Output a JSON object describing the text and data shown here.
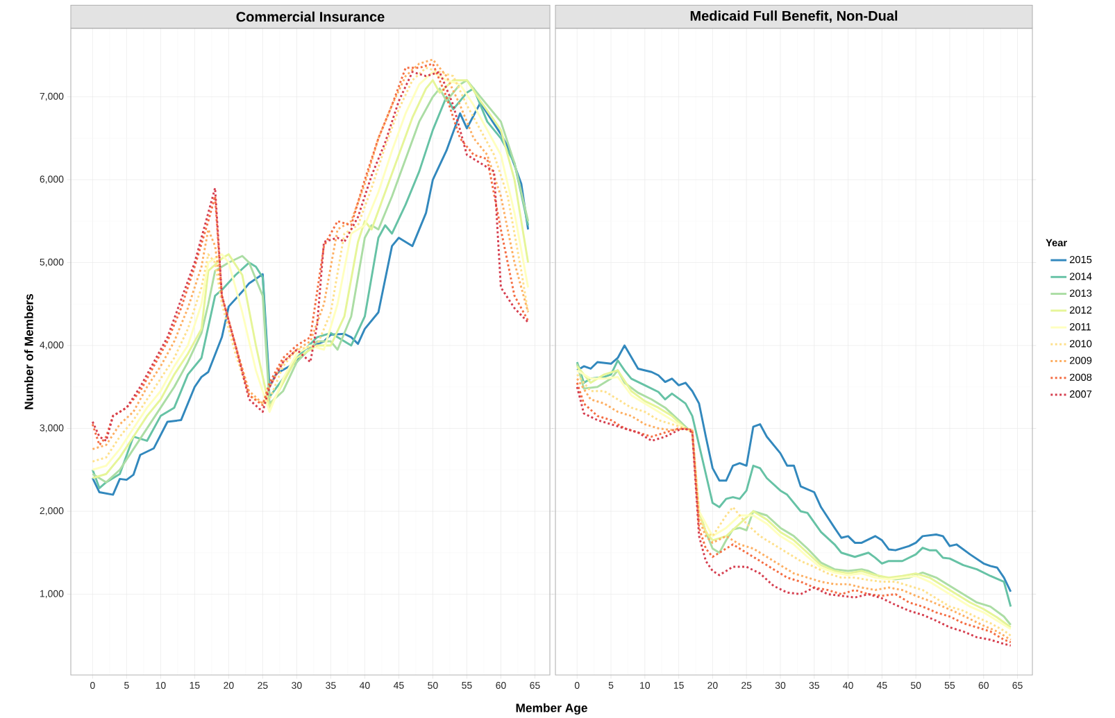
{
  "chart_data": [
    {
      "type": "line",
      "title": "Commercial Insurance",
      "xlabel": "Member Age",
      "ylabel": "Number of Members",
      "xlim": [
        -3.2,
        67.2
      ],
      "ylim": [
        25,
        7825
      ],
      "xticks": [
        0,
        5,
        10,
        15,
        20,
        25,
        30,
        35,
        40,
        45,
        50,
        55,
        60,
        65
      ],
      "yticks": [
        {
          "value": 1000,
          "label": "1,000"
        },
        {
          "value": 2000,
          "label": "2,000"
        },
        {
          "value": 3000,
          "label": "3,000"
        },
        {
          "value": 4000,
          "label": "4,000"
        },
        {
          "value": 5000,
          "label": "5,000"
        },
        {
          "value": 6000,
          "label": "6,000"
        },
        {
          "value": 7000,
          "label": "7,000"
        }
      ],
      "grid": true,
      "legend": false,
      "series": [
        {
          "color": "#3288bd",
          "line_style": "solid",
          "x": [
            0,
            1,
            3,
            4,
            5,
            6,
            7,
            9,
            11,
            13,
            15,
            16,
            17,
            19,
            20,
            22,
            23,
            25,
            26,
            27,
            30,
            31,
            34,
            35,
            37,
            38,
            39,
            40,
            42,
            44,
            45,
            47,
            49,
            50,
            52,
            54,
            55,
            57,
            58,
            60,
            61,
            63,
            64
          ],
          "values": [
            2400,
            2230,
            2200,
            2390,
            2380,
            2440,
            2680,
            2760,
            3080,
            3100,
            3500,
            3620,
            3680,
            4100,
            4470,
            4650,
            4750,
            4860,
            3500,
            3660,
            3800,
            3950,
            4050,
            4130,
            4140,
            4100,
            4020,
            4200,
            4400,
            5200,
            5300,
            5200,
            5600,
            6000,
            6350,
            6800,
            6620,
            6930,
            6800,
            6550,
            6400,
            5950,
            5400
          ]
        },
        {
          "color": "#66c2a5",
          "line_style": "solid",
          "x": [
            0,
            1,
            2,
            4,
            6,
            8,
            10,
            12,
            14,
            16,
            18,
            19,
            21,
            23,
            24,
            25,
            26,
            28,
            30,
            33,
            35,
            36,
            38,
            40,
            42,
            43,
            44,
            46,
            48,
            50,
            52,
            53,
            55,
            56,
            58,
            60,
            62,
            64
          ],
          "values": [
            2500,
            2280,
            2350,
            2450,
            2900,
            2850,
            3150,
            3250,
            3650,
            3850,
            4600,
            4670,
            4850,
            5000,
            4950,
            4820,
            3380,
            3600,
            3850,
            4100,
            4150,
            4100,
            4000,
            4350,
            5300,
            5450,
            5350,
            5700,
            6100,
            6600,
            7000,
            6850,
            7050,
            7100,
            6700,
            6500,
            6200,
            5450
          ]
        },
        {
          "color": "#abdda4",
          "line_style": "solid",
          "x": [
            0,
            2,
            4,
            6,
            8,
            10,
            12,
            14,
            16,
            17,
            18,
            20,
            22,
            23,
            25,
            26,
            28,
            30,
            33,
            35,
            36,
            38,
            40,
            41,
            42,
            44,
            46,
            48,
            50,
            51,
            52,
            54,
            55,
            57,
            60,
            62,
            64
          ],
          "values": [
            2450,
            2350,
            2500,
            2750,
            3000,
            3250,
            3500,
            3800,
            4150,
            4500,
            4900,
            5000,
            5080,
            5000,
            4600,
            3300,
            3450,
            3800,
            4050,
            4050,
            3950,
            4350,
            5300,
            5450,
            5400,
            5800,
            6250,
            6700,
            7000,
            7100,
            6950,
            7150,
            7200,
            7000,
            6700,
            6200,
            5500
          ]
        },
        {
          "color": "#e6f598",
          "line_style": "solid",
          "x": [
            0,
            2,
            4,
            6,
            8,
            10,
            12,
            14,
            16,
            17,
            19,
            20,
            22,
            24,
            26,
            28,
            30,
            33,
            35,
            37,
            39,
            40,
            41,
            43,
            45,
            47,
            49,
            50,
            51,
            53,
            55,
            57,
            60,
            62,
            64
          ],
          "values": [
            2400,
            2450,
            2650,
            2900,
            3150,
            3350,
            3650,
            3900,
            4200,
            4900,
            5050,
            5100,
            4850,
            4000,
            3250,
            3550,
            3850,
            4000,
            4000,
            4350,
            5250,
            5500,
            5400,
            5850,
            6300,
            6750,
            7100,
            7200,
            7050,
            7200,
            7200,
            6950,
            6600,
            6000,
            5000
          ]
        },
        {
          "color": "#ffffbf",
          "line_style": "solid",
          "x": [
            0,
            2,
            4,
            6,
            8,
            10,
            12,
            14,
            16,
            17,
            19,
            20,
            22,
            24,
            26,
            28,
            30,
            32,
            34,
            36,
            38,
            40,
            42,
            44,
            46,
            48,
            50,
            52,
            54,
            56,
            58,
            60,
            62,
            64
          ],
          "values": [
            2500,
            2550,
            2750,
            3000,
            3250,
            3450,
            3750,
            4000,
            4500,
            5000,
            5100,
            5000,
            4400,
            3700,
            3200,
            3600,
            3900,
            4000,
            3950,
            4500,
            5350,
            5450,
            5850,
            6350,
            6800,
            7150,
            7300,
            7200,
            7150,
            6900,
            6600,
            6300,
            5600,
            4700
          ]
        },
        {
          "color": "#fee08b",
          "line_style": "dotted",
          "x": [
            0,
            2,
            4,
            6,
            8,
            10,
            12,
            14,
            16,
            17,
            18,
            19,
            21,
            23,
            25,
            26,
            28,
            30,
            33,
            35,
            37,
            39,
            41,
            43,
            45,
            47,
            49,
            51,
            53,
            55,
            57,
            59,
            61,
            63,
            64
          ],
          "values": [
            2600,
            2650,
            2900,
            3100,
            3350,
            3600,
            3850,
            4200,
            4700,
            5100,
            5000,
            4500,
            3900,
            3400,
            3300,
            3350,
            3750,
            3950,
            4000,
            4400,
            5350,
            5450,
            5900,
            6400,
            6850,
            7200,
            7350,
            7300,
            7250,
            6900,
            6600,
            6300,
            5800,
            4900,
            4400
          ]
        },
        {
          "color": "#fdae61",
          "line_style": "dotted",
          "x": [
            0,
            2,
            4,
            6,
            8,
            10,
            12,
            14,
            16,
            17,
            18,
            19,
            21,
            23,
            25,
            26,
            28,
            30,
            32,
            34,
            36,
            38,
            40,
            42,
            44,
            46,
            48,
            50,
            52,
            54,
            56,
            58,
            60,
            62,
            64
          ],
          "values": [
            2750,
            2800,
            3050,
            3200,
            3500,
            3750,
            4050,
            4450,
            4950,
            5400,
            5200,
            4600,
            4000,
            3450,
            3300,
            3500,
            3800,
            3950,
            4050,
            4500,
            5400,
            5500,
            5950,
            6500,
            6900,
            7250,
            7400,
            7450,
            7250,
            6900,
            6500,
            6300,
            5800,
            5000,
            4400
          ]
        },
        {
          "color": "#f46d43",
          "line_style": "dotted",
          "x": [
            0,
            1,
            2,
            3,
            5,
            7,
            9,
            11,
            13,
            15,
            17,
            18,
            19,
            21,
            23,
            25,
            26,
            28,
            30,
            32,
            34,
            36,
            38,
            40,
            42,
            44,
            46,
            48,
            50,
            52,
            54,
            56,
            58,
            60,
            62,
            64
          ],
          "values": [
            3050,
            2800,
            2900,
            3150,
            3250,
            3450,
            3750,
            4050,
            4450,
            4950,
            5500,
            5800,
            4600,
            4000,
            3400,
            3280,
            3550,
            3850,
            4000,
            4100,
            5200,
            5500,
            5450,
            6000,
            6500,
            6900,
            7350,
            7350,
            7400,
            7000,
            6500,
            6300,
            6250,
            5400,
            4600,
            4300
          ]
        },
        {
          "color": "#d53e4f",
          "line_style": "dotted",
          "x": [
            0,
            1,
            2,
            3,
            5,
            7,
            9,
            11,
            13,
            15,
            17,
            18,
            19,
            21,
            23,
            25,
            26,
            28,
            30,
            32,
            33,
            34,
            36,
            37,
            39,
            41,
            43,
            45,
            47,
            49,
            51,
            53,
            55,
            57,
            59,
            60,
            62,
            64
          ],
          "values": [
            3080,
            2900,
            2850,
            3150,
            3250,
            3500,
            3800,
            4100,
            4550,
            5000,
            5600,
            5900,
            4600,
            4000,
            3350,
            3200,
            3500,
            3800,
            3950,
            3800,
            4250,
            5250,
            5300,
            5250,
            5550,
            6050,
            6450,
            6950,
            7300,
            7250,
            7300,
            6900,
            6300,
            6200,
            6100,
            4700,
            4450,
            4280
          ]
        }
      ]
    },
    {
      "type": "line",
      "title": "Medicaid Full Benefit, Non-Dual",
      "legend_title": "Year",
      "xlim": [
        -3.2,
        67.2
      ],
      "ylim": [
        25,
        7825
      ],
      "xticks": [
        0,
        5,
        10,
        15,
        20,
        25,
        30,
        35,
        40,
        45,
        50,
        55,
        60,
        65
      ],
      "yticks": [
        {
          "value": 1000,
          "label": null
        },
        {
          "value": 2000,
          "label": null
        },
        {
          "value": 3000,
          "label": null
        },
        {
          "value": 4000,
          "label": null
        },
        {
          "value": 5000,
          "label": null
        },
        {
          "value": 6000,
          "label": null
        },
        {
          "value": 7000,
          "label": null
        }
      ],
      "tick_labels": "x",
      "grid": true,
      "legend": "right",
      "series": [
        {
          "name": "2015",
          "color": "#3288bd",
          "line_style": "solid",
          "x": [
            0,
            1,
            2,
            3,
            5,
            6,
            7,
            9,
            11,
            12,
            13,
            14,
            15,
            16,
            17,
            18,
            19,
            20,
            21,
            22,
            23,
            24,
            25,
            26,
            27,
            28,
            30,
            31,
            32,
            33,
            35,
            36,
            38,
            39,
            40,
            41,
            42,
            44,
            45,
            46,
            47,
            49,
            50,
            51,
            53,
            54,
            55,
            56,
            58,
            60,
            61,
            62,
            63,
            64
          ],
          "values": [
            3700,
            3750,
            3720,
            3800,
            3780,
            3850,
            4000,
            3720,
            3680,
            3640,
            3560,
            3600,
            3520,
            3550,
            3450,
            3300,
            2900,
            2520,
            2370,
            2370,
            2550,
            2580,
            2550,
            3020,
            3050,
            2900,
            2700,
            2550,
            2550,
            2300,
            2230,
            2050,
            1800,
            1680,
            1700,
            1620,
            1620,
            1700,
            1650,
            1540,
            1530,
            1580,
            1620,
            1700,
            1720,
            1700,
            1580,
            1600,
            1480,
            1370,
            1340,
            1320,
            1200,
            1030
          ]
        },
        {
          "name": "2014",
          "color": "#66c2a5",
          "line_style": "solid",
          "x": [
            0,
            1,
            2,
            4,
            5,
            6,
            7,
            8,
            10,
            12,
            13,
            14,
            16,
            17,
            18,
            19,
            20,
            21,
            22,
            23,
            24,
            25,
            26,
            27,
            28,
            30,
            31,
            33,
            34,
            36,
            38,
            39,
            41,
            43,
            44,
            45,
            46,
            48,
            50,
            51,
            52,
            53,
            54,
            55,
            57,
            59,
            61,
            63,
            64
          ],
          "values": [
            3800,
            3550,
            3600,
            3620,
            3650,
            3820,
            3700,
            3600,
            3520,
            3440,
            3350,
            3420,
            3300,
            3150,
            2800,
            2450,
            2100,
            2050,
            2150,
            2170,
            2150,
            2250,
            2550,
            2520,
            2400,
            2250,
            2200,
            2000,
            1980,
            1750,
            1600,
            1500,
            1450,
            1500,
            1440,
            1370,
            1400,
            1400,
            1480,
            1560,
            1530,
            1530,
            1440,
            1430,
            1350,
            1300,
            1220,
            1150,
            850
          ]
        },
        {
          "name": "2013",
          "color": "#abdda4",
          "line_style": "solid",
          "x": [
            0,
            1,
            3,
            5,
            6,
            7,
            9,
            11,
            13,
            15,
            16,
            17,
            18,
            19,
            20,
            21,
            22,
            23,
            24,
            25,
            26,
            28,
            30,
            32,
            34,
            36,
            38,
            40,
            42,
            43,
            45,
            47,
            49,
            51,
            53,
            55,
            57,
            59,
            61,
            63,
            64
          ],
          "values": [
            3780,
            3480,
            3500,
            3600,
            3700,
            3550,
            3430,
            3350,
            3250,
            3100,
            3020,
            2950,
            2000,
            1750,
            1550,
            1500,
            1650,
            1780,
            1800,
            1770,
            2000,
            1950,
            1800,
            1700,
            1550,
            1380,
            1300,
            1280,
            1300,
            1280,
            1200,
            1180,
            1200,
            1260,
            1200,
            1100,
            1000,
            900,
            850,
            730,
            630
          ]
        },
        {
          "name": "2012",
          "color": "#e6f598",
          "line_style": "solid",
          "x": [
            0,
            2,
            4,
            6,
            8,
            10,
            12,
            14,
            16,
            17,
            18,
            19,
            20,
            22,
            24,
            26,
            28,
            30,
            32,
            34,
            36,
            38,
            40,
            42,
            44,
            46,
            48,
            50,
            52,
            54,
            56,
            58,
            60,
            62,
            64
          ],
          "values": [
            3750,
            3550,
            3650,
            3700,
            3450,
            3330,
            3250,
            3150,
            3000,
            2950,
            2000,
            1750,
            1650,
            1700,
            1850,
            2000,
            1900,
            1750,
            1650,
            1500,
            1350,
            1280,
            1250,
            1280,
            1230,
            1200,
            1220,
            1250,
            1200,
            1100,
            1000,
            900,
            820,
            720,
            600
          ]
        },
        {
          "name": "2011",
          "color": "#ffffbf",
          "line_style": "solid",
          "x": [
            0,
            2,
            4,
            6,
            8,
            10,
            12,
            14,
            16,
            17,
            18,
            20,
            22,
            24,
            26,
            28,
            30,
            32,
            34,
            36,
            38,
            40,
            42,
            44,
            46,
            48,
            50,
            52,
            54,
            56,
            58,
            60,
            62,
            64
          ],
          "values": [
            3700,
            3600,
            3600,
            3620,
            3400,
            3300,
            3200,
            3100,
            3000,
            2950,
            2000,
            1700,
            1800,
            1950,
            1950,
            1850,
            1700,
            1600,
            1450,
            1320,
            1260,
            1230,
            1250,
            1200,
            1180,
            1200,
            1220,
            1150,
            1050,
            950,
            850,
            780,
            680,
            580
          ]
        },
        {
          "name": "2010",
          "color": "#fee08b",
          "line_style": "dotted",
          "x": [
            0,
            2,
            4,
            6,
            8,
            10,
            12,
            14,
            16,
            17,
            18,
            19,
            20,
            22,
            23,
            25,
            27,
            29,
            31,
            33,
            35,
            37,
            39,
            41,
            43,
            45,
            47,
            49,
            51,
            53,
            55,
            57,
            59,
            61,
            63,
            64
          ],
          "values": [
            3650,
            3450,
            3450,
            3350,
            3250,
            3200,
            3100,
            3050,
            3000,
            2980,
            1950,
            1750,
            1700,
            1950,
            2050,
            1850,
            1700,
            1600,
            1500,
            1400,
            1330,
            1250,
            1200,
            1200,
            1170,
            1150,
            1150,
            1100,
            1050,
            950,
            850,
            800,
            720,
            650,
            560,
            500
          ]
        },
        {
          "name": "2009",
          "color": "#fdae61",
          "line_style": "dotted",
          "x": [
            0,
            2,
            4,
            6,
            8,
            10,
            12,
            14,
            16,
            17,
            18,
            19,
            20,
            22,
            24,
            26,
            28,
            30,
            32,
            34,
            36,
            38,
            40,
            42,
            44,
            46,
            48,
            50,
            52,
            54,
            56,
            58,
            60,
            62,
            64
          ],
          "values": [
            3600,
            3350,
            3300,
            3200,
            3150,
            3050,
            3000,
            2980,
            3000,
            2980,
            1900,
            1700,
            1620,
            1700,
            1600,
            1550,
            1450,
            1350,
            1250,
            1200,
            1150,
            1120,
            1120,
            1080,
            1050,
            1080,
            1050,
            980,
            920,
            850,
            780,
            700,
            620,
            550,
            450
          ]
        },
        {
          "name": "2008",
          "color": "#f46d43",
          "line_style": "dotted",
          "x": [
            0,
            1,
            3,
            5,
            7,
            9,
            11,
            13,
            15,
            17,
            18,
            19,
            20,
            21,
            23,
            25,
            27,
            29,
            31,
            33,
            35,
            37,
            39,
            41,
            43,
            45,
            47,
            49,
            51,
            53,
            55,
            57,
            59,
            61,
            63,
            64
          ],
          "values": [
            3550,
            3300,
            3150,
            3100,
            3000,
            2950,
            2900,
            2950,
            3000,
            2980,
            1800,
            1550,
            1450,
            1500,
            1600,
            1500,
            1400,
            1300,
            1200,
            1150,
            1080,
            1050,
            1000,
            1050,
            1000,
            980,
            1000,
            900,
            850,
            780,
            730,
            650,
            600,
            550,
            450,
            420
          ]
        },
        {
          "name": "2007",
          "color": "#d53e4f",
          "line_style": "dotted",
          "x": [
            0,
            1,
            3,
            5,
            7,
            9,
            11,
            13,
            15,
            16,
            17,
            18,
            19,
            20,
            21,
            23,
            25,
            27,
            29,
            31,
            33,
            35,
            37,
            39,
            41,
            43,
            45,
            47,
            49,
            51,
            53,
            55,
            57,
            59,
            61,
            63,
            64
          ],
          "values": [
            3500,
            3180,
            3100,
            3050,
            3000,
            2950,
            2850,
            2900,
            2980,
            3000,
            2950,
            1700,
            1400,
            1280,
            1230,
            1330,
            1330,
            1250,
            1100,
            1020,
            1000,
            1080,
            1000,
            980,
            960,
            1000,
            950,
            870,
            800,
            750,
            680,
            600,
            550,
            480,
            450,
            400,
            380
          ]
        }
      ]
    }
  ]
}
